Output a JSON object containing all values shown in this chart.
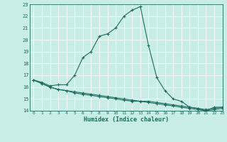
{
  "xlabel": "Humidex (Indice chaleur)",
  "bg_color": "#c8ece6",
  "grid_color": "#b0ddd6",
  "line_color": "#1e6b5e",
  "x_values": [
    0,
    1,
    2,
    3,
    4,
    5,
    6,
    7,
    8,
    9,
    10,
    11,
    12,
    13,
    14,
    15,
    16,
    17,
    18,
    19,
    20,
    21,
    22,
    23
  ],
  "line1_y": [
    16.6,
    16.4,
    16.1,
    16.2,
    16.2,
    17.0,
    18.5,
    19.0,
    20.3,
    20.5,
    21.0,
    22.0,
    22.5,
    22.8,
    19.5,
    16.8,
    15.7,
    15.0,
    14.8,
    14.3,
    14.2,
    14.0,
    14.3,
    14.3
  ],
  "line2_y": [
    16.6,
    16.3,
    16.0,
    15.8,
    15.7,
    15.6,
    15.5,
    15.4,
    15.3,
    15.2,
    15.1,
    15.0,
    14.9,
    14.8,
    14.7,
    14.6,
    14.5,
    14.4,
    14.3,
    14.2,
    14.1,
    14.0,
    14.1,
    14.2
  ],
  "line3_y": [
    16.6,
    16.3,
    16.0,
    15.8,
    15.7,
    15.5,
    15.4,
    15.3,
    15.2,
    15.1,
    15.0,
    14.9,
    14.8,
    14.8,
    14.8,
    14.7,
    14.6,
    14.5,
    14.4,
    14.3,
    14.2,
    14.1,
    14.2,
    14.3
  ],
  "ylim": [
    14,
    23
  ],
  "xlim": [
    -0.5,
    23
  ],
  "yticks": [
    14,
    15,
    16,
    17,
    18,
    19,
    20,
    21,
    22,
    23
  ],
  "xticks": [
    0,
    1,
    2,
    3,
    4,
    5,
    6,
    7,
    8,
    9,
    10,
    11,
    12,
    13,
    14,
    15,
    16,
    17,
    18,
    19,
    20,
    21,
    22,
    23
  ]
}
